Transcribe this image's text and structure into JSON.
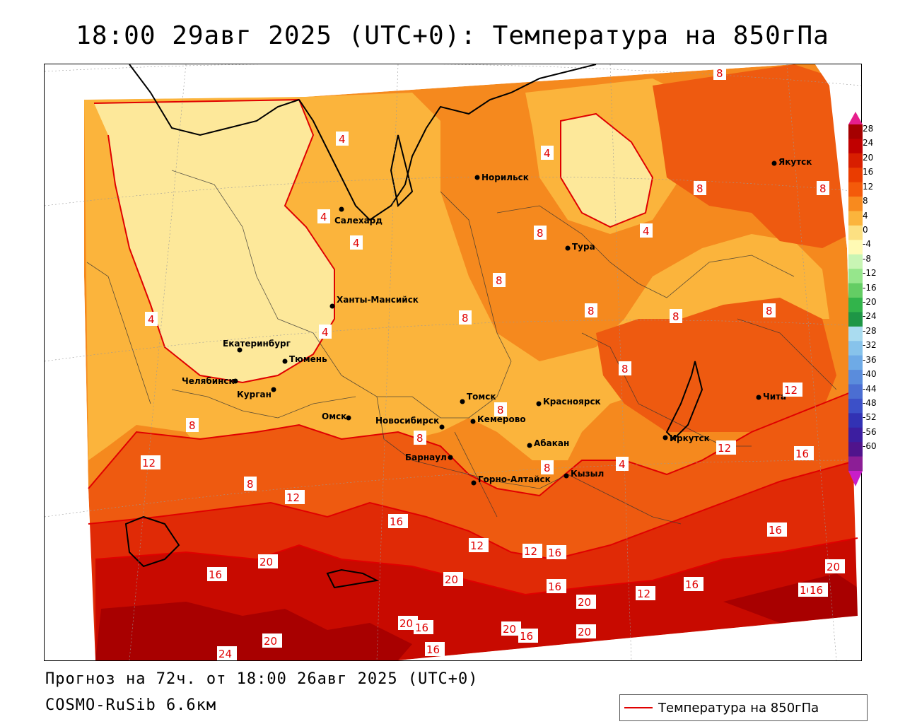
{
  "title": "18:00 29авг 2025 (UTC+0): Температура на 850гПа",
  "footer": {
    "forecast": "Прогноз на 72ч. от 18:00 26авг 2025 (UTC+0)",
    "model": "COSMO-RuSib 6.6км"
  },
  "legend": {
    "label": "Температура на 850гПа",
    "line_color": "#e00000"
  },
  "colorbar": {
    "ticks": [
      "28",
      "24",
      "20",
      "16",
      "12",
      "8",
      "4",
      "0",
      "-4",
      "-8",
      "-12",
      "-16",
      "-20",
      "-24",
      "-28",
      "-32",
      "-36",
      "-40",
      "-44",
      "-48",
      "-52",
      "-56",
      "-60"
    ],
    "colors": [
      "#a50000",
      "#c00000",
      "#d81e00",
      "#ea3c00",
      "#f45a0a",
      "#f88a1e",
      "#fbb43c",
      "#fce082",
      "#fffab4",
      "#c8f5b4",
      "#96e68c",
      "#64cd64",
      "#32b44b",
      "#1e9646",
      "#aadcf0",
      "#87c3eb",
      "#6eaae6",
      "#5a8cdc",
      "#4b6ed2",
      "#3c50c8",
      "#3232b4",
      "#3c1ea0",
      "#50148c",
      "#8c1e96"
    ],
    "top_arrow_color": "#e61e8c",
    "bottom_arrow_color": "#c81ec8"
  },
  "fill_colors": {
    "band_0_4": "#fde89a",
    "band_4_8": "#fbbf4a",
    "band_8_12": "#f5891e",
    "band_12_16": "#ee5a10",
    "band_16_20": "#e02a06",
    "band_20_24": "#c80a00",
    "band_24_28": "#a80000",
    "contour": "#e00000"
  },
  "cities": [
    {
      "name": "Норильск"
    },
    {
      "name": "Якутск"
    },
    {
      "name": "Салехард"
    },
    {
      "name": "Тура"
    },
    {
      "name": "Ханты-Мансийск"
    },
    {
      "name": "Екатеринбург"
    },
    {
      "name": "Тюмень"
    },
    {
      "name": "Челябинск"
    },
    {
      "name": "Курган"
    },
    {
      "name": "Омск"
    },
    {
      "name": "Новосибирск"
    },
    {
      "name": "Томск"
    },
    {
      "name": "Кемерово"
    },
    {
      "name": "Красноярск"
    },
    {
      "name": "Абакан"
    },
    {
      "name": "Барнаул"
    },
    {
      "name": "Горно-Алтайск"
    },
    {
      "name": "Кызыл"
    },
    {
      "name": "Иркутск"
    },
    {
      "name": "Чита"
    }
  ],
  "contour_labels": [
    "8",
    "4",
    "4",
    "8",
    "8",
    "4",
    "4",
    "8",
    "4",
    "8",
    "8",
    "8",
    "4",
    "8",
    "8",
    "8",
    "12",
    "8",
    "4",
    "4",
    "8",
    "8",
    "8",
    "12",
    "12",
    "16",
    "8",
    "12",
    "16",
    "16",
    "12",
    "12",
    "20",
    "16",
    "16",
    "20",
    "12",
    "20",
    "16",
    "16",
    "16",
    "20",
    "20",
    "16",
    "16",
    "16",
    "20",
    "20",
    "16",
    "20",
    "24"
  ]
}
